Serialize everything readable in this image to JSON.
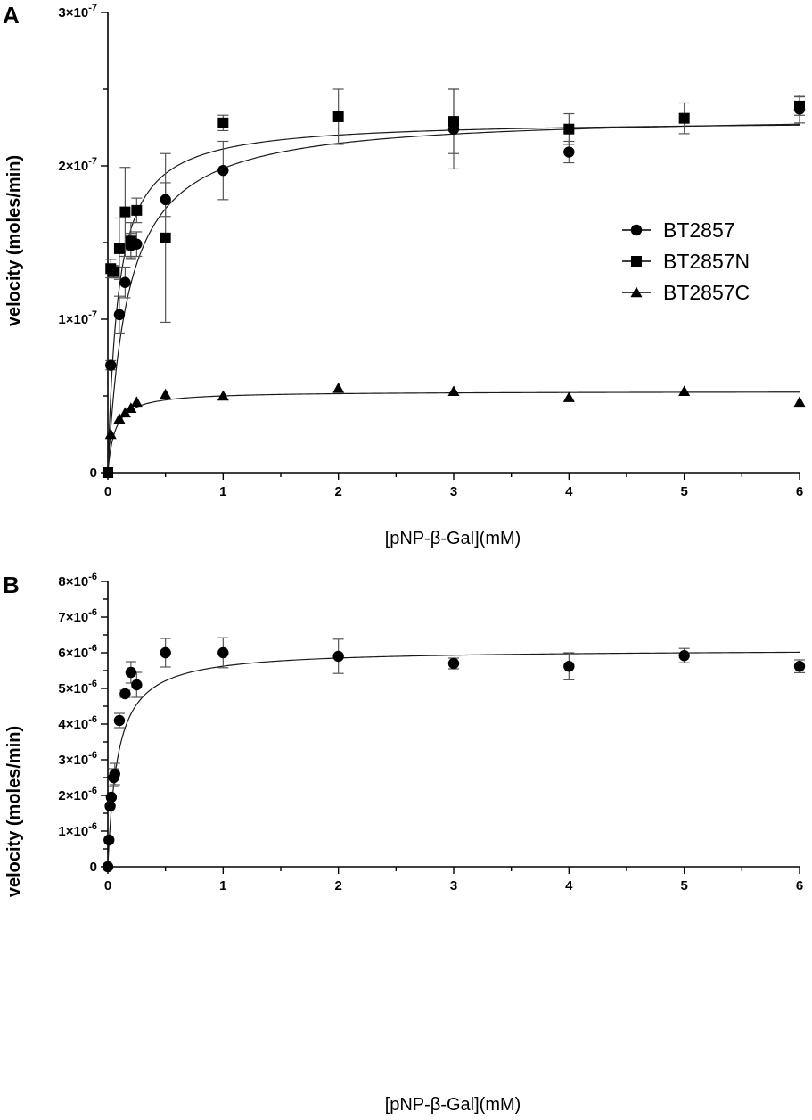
{
  "chart_data": [
    {
      "panel": "A",
      "type": "scatter",
      "xlabel": "[pNP-β-Gal](mM)",
      "ylabel": "velocity (moles/min)",
      "xlim": [
        0,
        6
      ],
      "ylim": [
        0,
        3e-07
      ],
      "x_ticks": [
        0,
        1,
        2,
        3,
        4,
        5,
        6
      ],
      "y_ticks": [
        {
          "value": 0,
          "mantissa": "0",
          "exponent": ""
        },
        {
          "value": 1e-07,
          "mantissa": "1×10",
          "exponent": "-7"
        },
        {
          "value": 2e-07,
          "mantissa": "2×10",
          "exponent": "-7"
        },
        {
          "value": 3e-07,
          "mantissa": "3×10",
          "exponent": "-7"
        }
      ],
      "legend_position": "right",
      "series": [
        {
          "name": "BT2857",
          "marker": "circle",
          "x": [
            0,
            0.025,
            0.1,
            0.15,
            0.2,
            0.25,
            0.5,
            1,
            3,
            4,
            6
          ],
          "y": [
            0,
            7e-08,
            1.03e-07,
            1.24e-07,
            1.48e-07,
            1.49e-07,
            1.78e-07,
            1.97e-07,
            2.24e-07,
            2.09e-07,
            2.37e-07
          ],
          "error": [
            0,
            3e-09,
            1.2e-08,
            1e-08,
            8e-09,
            8e-09,
            1.1e-08,
            1.9e-08,
            2.6e-08,
            7e-09,
            9e-09
          ],
          "fit": {
            "model": "michaelis-menten",
            "vmax": 2.34e-07,
            "km": 0.18
          }
        },
        {
          "name": "BT2857N",
          "marker": "square",
          "x": [
            0,
            0.025,
            0.05,
            0.1,
            0.15,
            0.2,
            0.25,
            0.5,
            1,
            2,
            3,
            4,
            5,
            6
          ],
          "y": [
            0,
            1.33e-07,
            1.31e-07,
            1.46e-07,
            1.7e-07,
            1.51e-07,
            1.71e-07,
            1.53e-07,
            2.28e-07,
            2.32e-07,
            2.29e-07,
            2.24e-07,
            2.31e-07,
            2.39e-07
          ],
          "error": [
            0,
            6e-09,
            4e-09,
            2e-08,
            2.9e-08,
            1.2e-08,
            8e-09,
            5.5e-08,
            5e-09,
            1.8e-08,
            2.1e-08,
            1e-08,
            1e-08,
            6e-09
          ],
          "fit": {
            "model": "michaelis-menten",
            "vmax": 2.3e-07,
            "km": 0.09
          }
        },
        {
          "name": "BT2857C",
          "marker": "triangle",
          "x": [
            0,
            0.025,
            0.1,
            0.15,
            0.2,
            0.25,
            0.5,
            1,
            2,
            3,
            4,
            5,
            6
          ],
          "y": [
            0,
            2.5e-08,
            3.5e-08,
            3.9e-08,
            4.2e-08,
            4.6e-08,
            5.1e-08,
            5e-08,
            5.5e-08,
            5.3e-08,
            4.9e-08,
            5.3e-08,
            4.6e-08
          ],
          "error": [
            0,
            0,
            0,
            0,
            0,
            0,
            0,
            0,
            0,
            0,
            0,
            0,
            0
          ],
          "fit": {
            "model": "michaelis-menten",
            "vmax": 5.3e-08,
            "km": 0.06
          }
        }
      ]
    },
    {
      "panel": "B",
      "type": "scatter",
      "xlabel": "[pNP-β-Gal](mM)",
      "ylabel": "velocity (moles/min)",
      "xlim": [
        0,
        6
      ],
      "ylim": [
        0,
        8e-06
      ],
      "x_ticks": [
        0,
        1,
        2,
        3,
        4,
        5,
        6
      ],
      "y_ticks": [
        {
          "value": 0,
          "mantissa": "0",
          "exponent": ""
        },
        {
          "value": 1e-06,
          "mantissa": "1×10",
          "exponent": "-6"
        },
        {
          "value": 2e-06,
          "mantissa": "2×10",
          "exponent": "-6"
        },
        {
          "value": 3e-06,
          "mantissa": "3×10",
          "exponent": "-6"
        },
        {
          "value": 4e-06,
          "mantissa": "4×10",
          "exponent": "-6"
        },
        {
          "value": 5e-06,
          "mantissa": "5×10",
          "exponent": "-6"
        },
        {
          "value": 6e-06,
          "mantissa": "6×10",
          "exponent": "-6"
        },
        {
          "value": 7e-06,
          "mantissa": "7×10",
          "exponent": "-6"
        },
        {
          "value": 8e-06,
          "mantissa": "8×10",
          "exponent": "-6"
        }
      ],
      "series": [
        {
          "name": "",
          "marker": "circle",
          "x": [
            0,
            0.01,
            0.02,
            0.03,
            0.05,
            0.06,
            0.1,
            0.15,
            0.2,
            0.25,
            0.5,
            1,
            2,
            3,
            4,
            5,
            6
          ],
          "y": [
            0,
            7.5e-07,
            1.7e-06,
            1.95e-06,
            2.5e-06,
            2.6e-06,
            4.1e-06,
            4.85e-06,
            5.45e-06,
            5.1e-06,
            6e-06,
            6e-06,
            5.9e-06,
            5.7e-06,
            5.62e-06,
            5.92e-06,
            5.62e-06
          ],
          "error": [
            0,
            0,
            0,
            0,
            2.5e-07,
            3e-07,
            2e-07,
            1e-07,
            3e-07,
            3.5e-07,
            4e-07,
            4.2e-07,
            4.8e-07,
            1.5e-07,
            3.8e-07,
            2e-07,
            1.8e-07
          ],
          "fit": {
            "model": "michaelis-menten",
            "vmax": 6.1e-06,
            "km": 0.085
          }
        }
      ]
    }
  ],
  "figure": {
    "panel_letters": [
      "A",
      "B"
    ]
  }
}
